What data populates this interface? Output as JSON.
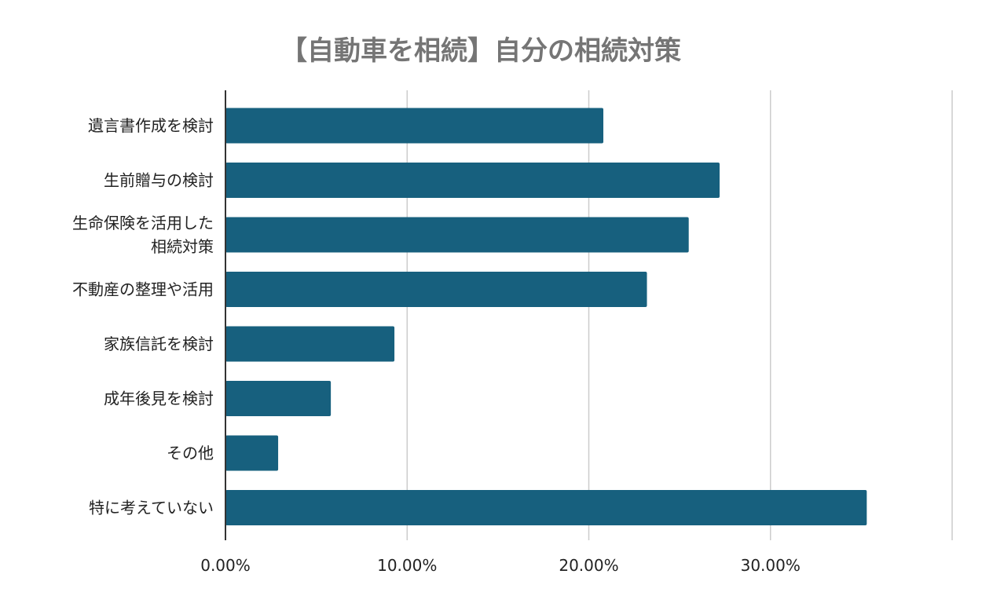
{
  "chart_data": {
    "type": "bar",
    "orientation": "horizontal",
    "title": "【自動車を相続】自分の相続対策",
    "categories": [
      [
        "遺言書作成を検討"
      ],
      [
        "生前贈与の検討"
      ],
      [
        "生命保険を活用した",
        "相続対策"
      ],
      [
        "不動産の整理や活用"
      ],
      [
        "家族信託を検討"
      ],
      [
        "成年後見を検討"
      ],
      [
        "その他"
      ],
      [
        "特に考えていない"
      ]
    ],
    "values": [
      20.8,
      27.2,
      25.5,
      23.2,
      9.3,
      5.8,
      2.9,
      35.3
    ],
    "xlim": [
      0,
      40
    ],
    "ticks": [
      0,
      10,
      20,
      30,
      40
    ],
    "tick_labels": [
      "0.00%",
      "10.00%",
      "20.00%",
      "30.00%",
      ""
    ],
    "grid": true,
    "legend": "none",
    "bar_color": "#17607e",
    "xlabel": "",
    "ylabel": ""
  }
}
